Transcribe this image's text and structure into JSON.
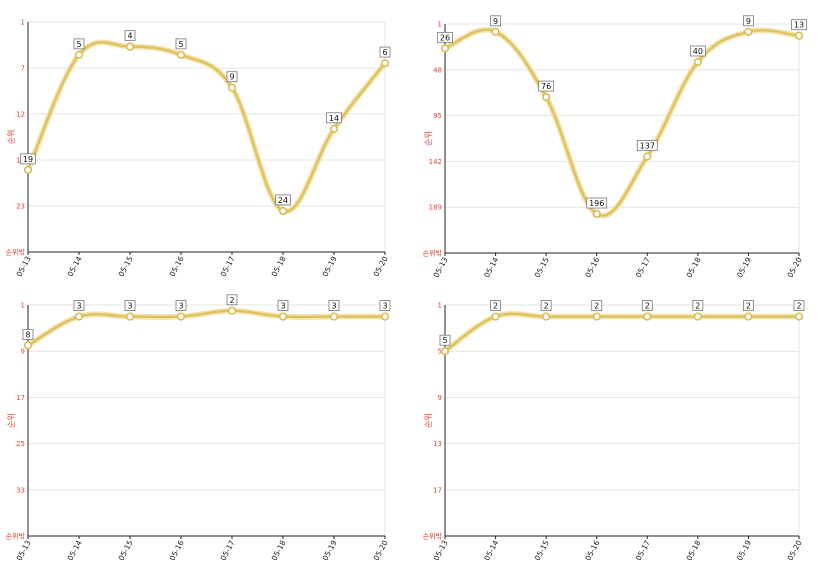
{
  "chart_data": [
    {
      "type": "line",
      "ylabel": "순위",
      "y_reversed": true,
      "yticks": [
        "1",
        "7",
        "12",
        "18",
        "23",
        "순위밖"
      ],
      "categories": [
        "05-13",
        "05-14",
        "05-15",
        "05-16",
        "05-17",
        "05-18",
        "05-19",
        "05-20"
      ],
      "values": [
        19,
        5,
        4,
        5,
        9,
        24,
        14,
        6
      ],
      "ylim": [
        1,
        29
      ],
      "grid": true,
      "line_color": "#dcc15f"
    },
    {
      "type": "line",
      "ylabel": "순위",
      "y_reversed": true,
      "yticks": [
        "1",
        "48",
        "95",
        "142",
        "189",
        "순위밖"
      ],
      "categories": [
        "05-13",
        "05-14",
        "05-15",
        "05-16",
        "05-17",
        "05-18",
        "05-19",
        "05-20"
      ],
      "values": [
        26,
        9,
        76,
        196,
        137,
        40,
        9,
        13
      ],
      "ylim": [
        1,
        236
      ],
      "grid": true,
      "line_color": "#dcc15f"
    },
    {
      "type": "line",
      "ylabel": "순위",
      "y_reversed": true,
      "yticks": [
        "1",
        "9",
        "17",
        "25",
        "33",
        "순위밖"
      ],
      "categories": [
        "05-13",
        "05-14",
        "05-15",
        "05-16",
        "05-17",
        "05-18",
        "05-19",
        "05-20"
      ],
      "values": [
        8,
        3,
        3,
        3,
        2,
        3,
        3,
        3
      ],
      "ylim": [
        1,
        41
      ],
      "grid": true,
      "line_color": "#dcc15f"
    },
    {
      "type": "line",
      "ylabel": "순위",
      "y_reversed": true,
      "yticks": [
        "1",
        "5",
        "9",
        "13",
        "17",
        "순위밖"
      ],
      "categories": [
        "05-13",
        "05-14",
        "05-15",
        "05-16",
        "05-17",
        "05-18",
        "05-19",
        "05-20"
      ],
      "values": [
        5,
        2,
        2,
        2,
        2,
        2,
        2,
        2
      ],
      "ylim": [
        1,
        21
      ],
      "grid": true,
      "line_color": "#dcc15f"
    }
  ]
}
